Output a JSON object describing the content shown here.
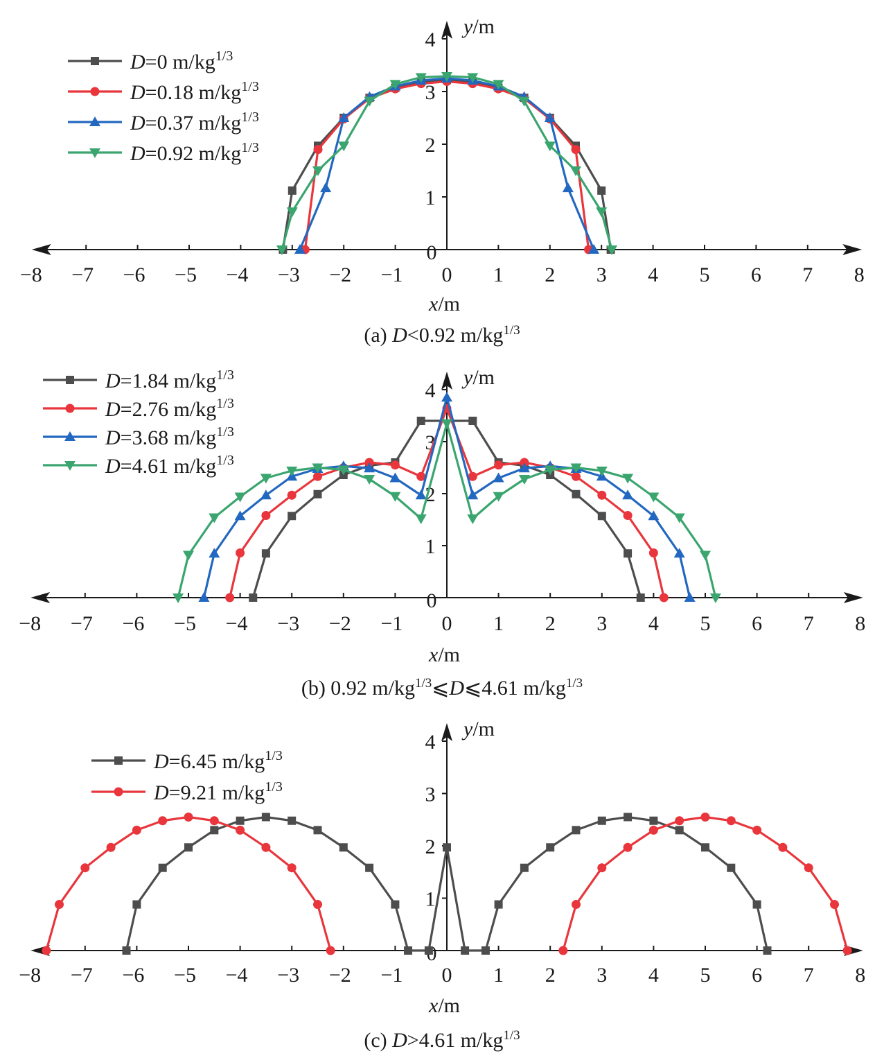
{
  "chart_data": [
    {
      "type": "line",
      "caption": "(a) D<0.92 m/kg1/3",
      "xlabel": "x/m",
      "ylabel": "y/m",
      "xlim": [
        -8,
        8
      ],
      "ylim": [
        0,
        4
      ],
      "xticks": [
        "−8",
        "−7",
        "−6",
        "−5",
        "−4",
        "−3",
        "−2",
        "−1",
        "0",
        "1",
        "2",
        "3",
        "4",
        "5",
        "6",
        "7",
        "8"
      ],
      "yticks": [
        "1",
        "2",
        "3",
        "4"
      ],
      "legend_position": "top-left",
      "series": [
        {
          "name": "D=0 m/kg1/3",
          "color": "#4d4d4d",
          "marker": "square",
          "x": [
            -3.18,
            -3.0,
            -2.5,
            -2.0,
            -1.5,
            -1.0,
            -0.5,
            0,
            0.5,
            1.0,
            1.5,
            2.0,
            2.5,
            3.0,
            3.18
          ],
          "y": [
            0,
            1.12,
            1.97,
            2.5,
            2.88,
            3.07,
            3.19,
            3.22,
            3.19,
            3.07,
            2.88,
            2.5,
            1.97,
            1.12,
            0
          ]
        },
        {
          "name": "D=0.18 m/kg1/3",
          "color": "#e8363c",
          "marker": "circle",
          "x": [
            -2.75,
            -2.5,
            -2.0,
            -1.5,
            -1.0,
            -0.5,
            0,
            0.5,
            1.0,
            1.5,
            2.0,
            2.5,
            2.75
          ],
          "y": [
            0,
            1.9,
            2.48,
            2.87,
            3.05,
            3.15,
            3.19,
            3.15,
            3.05,
            2.87,
            2.48,
            1.9,
            0
          ]
        },
        {
          "name": "D=0.37 m/kg1/3",
          "color": "#2368c0",
          "marker": "triangle-up",
          "x": [
            -2.85,
            -2.35,
            -2.0,
            -1.5,
            -1.0,
            -0.5,
            0,
            0.5,
            1.0,
            1.5,
            2.0,
            2.35,
            2.85
          ],
          "y": [
            0,
            1.17,
            2.5,
            2.9,
            3.1,
            3.21,
            3.25,
            3.21,
            3.1,
            2.9,
            2.5,
            1.17,
            0
          ]
        },
        {
          "name": "D=0.92 m/kg1/3",
          "color": "#3aa56e",
          "marker": "triangle-down",
          "x": [
            -3.2,
            -3.0,
            -2.5,
            -2.0,
            -1.5,
            -1.0,
            -0.5,
            0,
            0.5,
            1.0,
            1.5,
            2.0,
            2.5,
            3.0,
            3.2
          ],
          "y": [
            0,
            0.72,
            1.5,
            1.97,
            2.82,
            3.14,
            3.27,
            3.29,
            3.27,
            3.14,
            2.82,
            1.97,
            1.5,
            0.72,
            0
          ]
        }
      ]
    },
    {
      "type": "line",
      "caption": "(b) 0.92 m/kg1/3⩽D⩽4.61 m/kg1/3",
      "xlabel": "x/m",
      "ylabel": "y/m",
      "xlim": [
        -8,
        8
      ],
      "ylim": [
        0,
        4
      ],
      "xticks": [
        "−8",
        "−7",
        "−6",
        "−5",
        "−4",
        "−3",
        "−2",
        "−1",
        "0",
        "1",
        "2",
        "3",
        "4",
        "5",
        "6",
        "7",
        "8"
      ],
      "yticks": [
        "1",
        "2",
        "3",
        "4"
      ],
      "legend_position": "top-left",
      "series": [
        {
          "name": "D=1.84 m/kg1/3",
          "color": "#4d4d4d",
          "marker": "square",
          "x": [
            -3.75,
            -3.5,
            -3.0,
            -2.5,
            -2.0,
            -1.5,
            -1.0,
            -0.5,
            0.5,
            1.0,
            1.5,
            2.0,
            2.5,
            3.0,
            3.5,
            3.75
          ],
          "y": [
            0,
            0.85,
            1.57,
            1.99,
            2.36,
            2.54,
            2.6,
            3.4,
            3.4,
            2.6,
            2.54,
            2.36,
            1.99,
            1.57,
            0.85,
            0
          ]
        },
        {
          "name": "D=2.76 m/kg1/3",
          "color": "#e8363c",
          "marker": "circle",
          "x": [
            -4.2,
            -4.0,
            -3.5,
            -3.0,
            -2.5,
            -2.0,
            -1.5,
            -1.0,
            -0.5,
            0,
            0.5,
            1.0,
            1.5,
            2.0,
            2.5,
            3.0,
            3.5,
            4.0,
            4.2
          ],
          "y": [
            0,
            0.86,
            1.58,
            1.97,
            2.33,
            2.5,
            2.6,
            2.55,
            2.33,
            3.64,
            2.33,
            2.55,
            2.6,
            2.5,
            2.33,
            1.97,
            1.58,
            0.86,
            0
          ]
        },
        {
          "name": "D=3.68 m/kg1/3",
          "color": "#2368c0",
          "marker": "triangle-up",
          "x": [
            -4.7,
            -4.5,
            -4.0,
            -3.5,
            -3.0,
            -2.5,
            -2.0,
            -1.5,
            -1.0,
            -0.5,
            0,
            0.5,
            1.0,
            1.5,
            2.0,
            2.5,
            3.0,
            3.5,
            4.0,
            4.5,
            4.7
          ],
          "y": [
            0,
            0.85,
            1.57,
            1.97,
            2.33,
            2.48,
            2.53,
            2.49,
            2.3,
            1.97,
            3.85,
            1.97,
            2.3,
            2.49,
            2.53,
            2.48,
            2.33,
            1.97,
            1.57,
            0.85,
            0
          ]
        },
        {
          "name": "D=4.61 m/kg1/3",
          "color": "#3aa56e",
          "marker": "triangle-down",
          "x": [
            -5.2,
            -5.0,
            -4.5,
            -4.0,
            -3.5,
            -3.0,
            -2.5,
            -2.0,
            -1.5,
            -1.0,
            -0.5,
            0,
            0.5,
            1.0,
            1.5,
            2.0,
            2.5,
            3.0,
            3.5,
            4.0,
            4.5,
            5.0,
            5.2
          ],
          "y": [
            0,
            0.82,
            1.54,
            1.94,
            2.3,
            2.44,
            2.5,
            2.46,
            2.28,
            1.95,
            1.52,
            3.35,
            1.52,
            1.95,
            2.28,
            2.46,
            2.5,
            2.44,
            2.3,
            1.94,
            1.54,
            0.82,
            0
          ]
        }
      ]
    },
    {
      "type": "line",
      "caption": "(c) D>4.61 m/kg1/3",
      "xlabel": "x/m",
      "ylabel": "y/m",
      "xlim": [
        -8,
        8
      ],
      "ylim": [
        0,
        4
      ],
      "xticks": [
        "−8",
        "−7",
        "−6",
        "−5",
        "−4",
        "−3",
        "−2",
        "−1",
        "0",
        "1",
        "2",
        "3",
        "4",
        "5",
        "6",
        "7",
        "8"
      ],
      "yticks": [
        "1",
        "2",
        "3",
        "4"
      ],
      "legend_position": "top-left",
      "series": [
        {
          "name": "D=6.45 m/kg1/3",
          "color": "#4d4d4d",
          "marker": "square",
          "x": [
            -6.2,
            -6.0,
            -5.5,
            -5.0,
            -4.5,
            -4.0,
            -3.5,
            -3.0,
            -2.5,
            -2.0,
            -1.5,
            -1.0,
            -0.75,
            -0.35,
            0,
            0.35,
            0.75,
            1.0,
            1.5,
            2.0,
            2.5,
            3.0,
            3.5,
            4.0,
            4.5,
            5.0,
            5.5,
            6.0,
            6.2
          ],
          "y": [
            0,
            0.88,
            1.58,
            1.97,
            2.3,
            2.48,
            2.55,
            2.48,
            2.3,
            1.97,
            1.58,
            0.88,
            0,
            0,
            1.97,
            0,
            0,
            0.88,
            1.58,
            1.97,
            2.3,
            2.48,
            2.55,
            2.48,
            2.3,
            1.97,
            1.58,
            0.88,
            0
          ]
        },
        {
          "name": "D=9.21 m/kg1/3",
          "color": "#e8363c",
          "marker": "circle",
          "x": [
            -7.75,
            -7.5,
            -7.0,
            -6.5,
            -6.0,
            -5.5,
            -5.0,
            -4.5,
            -4.0,
            -3.5,
            -3.0,
            -2.5,
            -2.25
          ],
          "y": [
            0,
            0.88,
            1.58,
            1.97,
            2.3,
            2.48,
            2.55,
            2.48,
            2.3,
            1.97,
            1.58,
            0.88,
            0
          ]
        },
        {
          "name": "",
          "color": "#e8363c",
          "marker": "circle",
          "x": [
            2.25,
            2.5,
            3.0,
            3.5,
            4.0,
            4.5,
            5.0,
            5.5,
            6.0,
            6.5,
            7.0,
            7.5,
            7.75
          ],
          "y": [
            0,
            0.88,
            1.58,
            1.97,
            2.3,
            2.48,
            2.55,
            2.48,
            2.3,
            1.97,
            1.58,
            0.88,
            0
          ]
        }
      ]
    }
  ]
}
